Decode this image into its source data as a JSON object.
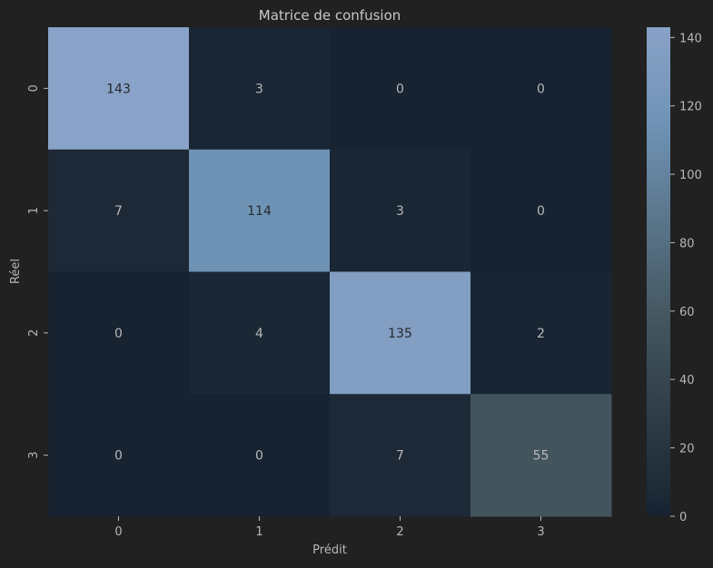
{
  "chart_data": {
    "type": "heatmap",
    "title": "Matrice de confusion",
    "xlabel": "Prédit",
    "ylabel": "Réel",
    "x_categories": [
      "0",
      "1",
      "2",
      "3"
    ],
    "y_categories": [
      "0",
      "1",
      "2",
      "3"
    ],
    "values": [
      [
        143,
        3,
        0,
        0
      ],
      [
        7,
        114,
        3,
        0
      ],
      [
        0,
        4,
        135,
        2
      ],
      [
        0,
        0,
        7,
        55
      ]
    ],
    "colorbar": {
      "min": 0,
      "max": 143,
      "ticks": [
        0,
        20,
        40,
        60,
        80,
        100,
        120,
        140
      ],
      "colors": [
        "#172331",
        "#42535b",
        "#6f93b5",
        "#89a2c7"
      ]
    },
    "background": "#212121",
    "text_color": "#b8b8b8",
    "annotation_dark_text": "#262a30"
  }
}
